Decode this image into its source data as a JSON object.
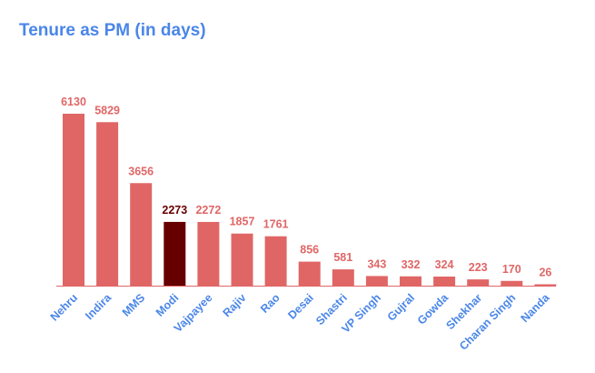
{
  "chart_data": {
    "type": "bar",
    "title": "Tenure as PM (in days)",
    "xlabel": "",
    "ylabel": "",
    "categories": [
      "Nehru",
      "Indira",
      "MMS",
      "Modi",
      "Vajpayee",
      "Rajiv",
      "Rao",
      "Desai",
      "Shastri",
      "VP Singh",
      "Gujral",
      "Gowda",
      "Shekhar",
      "Charan Singh",
      "Nanda"
    ],
    "values": [
      6130,
      5829,
      3656,
      2273,
      2272,
      1857,
      1761,
      856,
      581,
      343,
      332,
      324,
      223,
      170,
      26
    ],
    "ylim": [
      0,
      6130
    ],
    "grid": false,
    "legend": "none",
    "highlight_index": 3,
    "colors": {
      "bar": "#e06666",
      "highlight_bar": "#660000",
      "value_label": "#e06666",
      "highlight_value_label": "#660000",
      "category_label": "#4a86e8",
      "title": "#4a86e8",
      "baseline": "#e06666"
    }
  }
}
